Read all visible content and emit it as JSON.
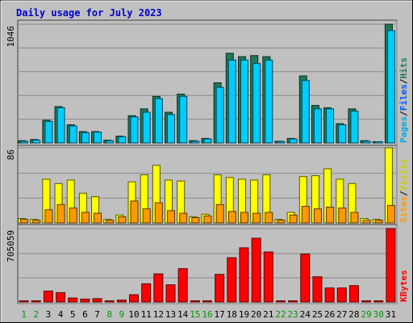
{
  "chart_data": {
    "title": "Daily usage for July 2023",
    "days": [
      "1",
      "2",
      "3",
      "4",
      "5",
      "6",
      "7",
      "8",
      "9",
      "10",
      "11",
      "12",
      "13",
      "14",
      "15",
      "16",
      "17",
      "18",
      "19",
      "20",
      "21",
      "22",
      "23",
      "24",
      "25",
      "26",
      "27",
      "28",
      "29",
      "30",
      "31"
    ],
    "weekend_days": [
      "1",
      "2",
      "8",
      "9",
      "15",
      "16",
      "22",
      "23",
      "29",
      "30"
    ],
    "colors": {
      "frame_bg": "#c0c0c0",
      "title": "#0000cc",
      "weekday_label": "#000000",
      "weekend_label": "#009900",
      "hits": "#1d7a5b",
      "files": "#00ccff",
      "pages": "#00ccff",
      "visits": "#ffff00",
      "sites": "#ff9900",
      "kbytes": "#ff0000"
    },
    "panels": [
      {
        "id": "hits-files-pages",
        "type": "bar",
        "max_label": "1046",
        "ylim": [
          0,
          1046
        ],
        "legend": [
          {
            "label": "Pages",
            "color": "#00aadd"
          },
          {
            "label": "/",
            "color": "#000000"
          },
          {
            "label": "Files",
            "color": "#0055ff"
          },
          {
            "label": "/",
            "color": "#000000"
          },
          {
            "label": "Hits",
            "color": "#1d7a5b"
          }
        ],
        "series": [
          {
            "name": "Hits",
            "color": "#1d7a5b",
            "values": [
              20,
              30,
              200,
              320,
              160,
              100,
              100,
              25,
              60,
              240,
              300,
              410,
              270,
              430,
              20,
              40,
              530,
              790,
              760,
              770,
              760,
              15,
              40,
              590,
              330,
              310,
              170,
              300,
              20,
              10,
              1046
            ]
          },
          {
            "name": "Files",
            "color": "#00ccff",
            "values": [
              15,
              25,
              190,
              310,
              150,
              90,
              95,
              20,
              55,
              230,
              270,
              390,
              250,
              410,
              15,
              35,
              490,
              730,
              730,
              700,
              730,
              12,
              35,
              550,
              300,
              300,
              160,
              280,
              15,
              8,
              990
            ]
          }
        ]
      },
      {
        "id": "visits-sites",
        "type": "bar",
        "max_label": "86",
        "ylim": [
          0,
          86
        ],
        "legend": [
          {
            "label": "Sites",
            "color": "#ff9900"
          },
          {
            "label": "/",
            "color": "#000000"
          },
          {
            "label": "Visits",
            "color": "#cccc00"
          }
        ],
        "series": [
          {
            "name": "Visits",
            "color": "#ffff00",
            "values": [
              5,
              4,
              50,
              45,
              49,
              34,
              30,
              4,
              9,
              47,
              55,
              66,
              49,
              48,
              7,
              10,
              55,
              52,
              50,
              49,
              55,
              4,
              12,
              53,
              54,
              62,
              50,
              45,
              5,
              4,
              86
            ]
          },
          {
            "name": "Sites",
            "color": "#ff9900",
            "values": [
              4,
              3,
              15,
              21,
              17,
              12,
              11,
              3,
              7,
              25,
              16,
              23,
              14,
              11,
              6,
              8,
              21,
              13,
              12,
              11,
              12,
              3,
              9,
              19,
              16,
              18,
              17,
              12,
              3,
              3,
              20
            ]
          }
        ]
      },
      {
        "id": "kbytes",
        "type": "bar",
        "max_label": "705059",
        "ylim": [
          0,
          705059
        ],
        "legend": [
          {
            "label": "KBytes",
            "color": "#ff0000"
          }
        ],
        "series": [
          {
            "name": "KBytes",
            "color": "#ff0000",
            "values": [
              2000,
              2000,
              105000,
              90000,
              38000,
              28000,
              32000,
              5000,
              18000,
              70000,
              175000,
              270000,
              165000,
              320000,
              2000,
              3000,
              265000,
              425000,
              520000,
              612000,
              480000,
              2000,
              3000,
              460000,
              242000,
              135000,
              135000,
              157000,
              3000,
              2000,
              705059
            ]
          }
        ]
      }
    ]
  }
}
